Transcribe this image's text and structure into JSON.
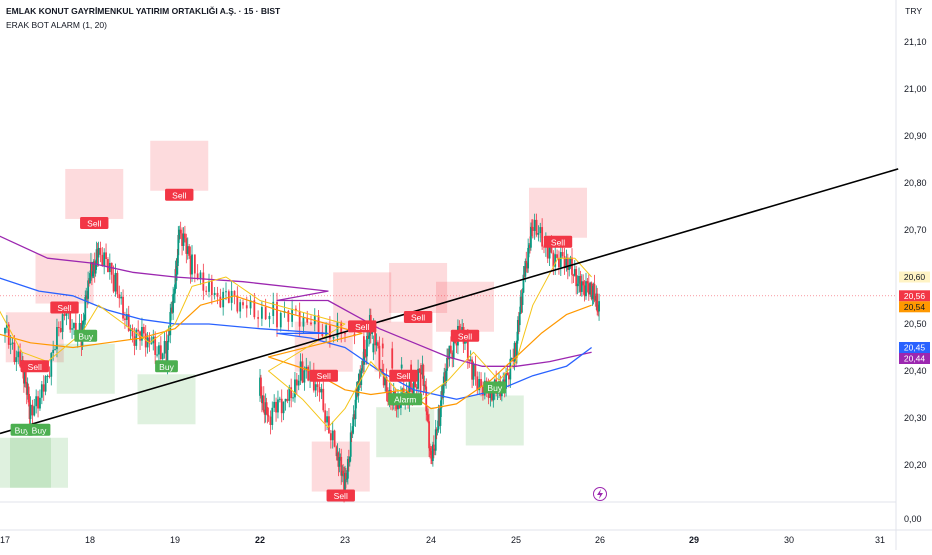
{
  "header": {
    "title": "EMLAK KONUT GAYRİMENKUL YATIRIM ORTAKLIĞI A.Ş. · 15 · BIST",
    "indicator": "ERAK BOT ALARM (1, 20)",
    "currency": "TRY"
  },
  "chart_data": {
    "type": "candlestick",
    "y_ticks": [
      "21,10",
      "21,00",
      "20,90",
      "20,80",
      "20,70",
      "20,60",
      "20,50",
      "20,40",
      "20,30",
      "20,20",
      "0,00"
    ],
    "y_tick_values": [
      21.1,
      21.0,
      20.9,
      20.8,
      20.7,
      20.6,
      20.5,
      20.4,
      20.3,
      20.2
    ],
    "x_ticks": [
      "17",
      "18",
      "19",
      "22",
      "23",
      "24",
      "25",
      "26",
      "29",
      "30",
      "31"
    ],
    "price_labels": [
      {
        "text": "20,60",
        "value": 20.6,
        "color": "#fff3c4",
        "text_color": "#131722"
      },
      {
        "text": "20,56",
        "value": 20.56,
        "color": "#f23645",
        "text_color": "#ffffff"
      },
      {
        "text": "20,54",
        "value": 20.54,
        "color": "#ff9800",
        "text_color": "#131722"
      },
      {
        "text": "20,45",
        "value": 20.45,
        "color": "#2962ff",
        "text_color": "#ffffff"
      },
      {
        "text": "20,44",
        "value": 20.44,
        "color": "#9c27b0",
        "text_color": "#ffffff"
      }
    ],
    "signals": [
      {
        "label": "Buy",
        "type": "buy",
        "day": 17.2,
        "price": 20.275
      },
      {
        "label": "Buy",
        "type": "buy",
        "day": 17.4,
        "price": 20.275
      },
      {
        "label": "Sell",
        "type": "sell",
        "day": 17.35,
        "price": 20.41
      },
      {
        "label": "Sell",
        "type": "sell",
        "day": 17.7,
        "price": 20.535
      },
      {
        "label": "Buy",
        "type": "buy",
        "day": 17.95,
        "price": 20.475
      },
      {
        "label": "Sell",
        "type": "sell",
        "day": 18.05,
        "price": 20.715
      },
      {
        "label": "Buy",
        "type": "buy",
        "day": 18.9,
        "price": 20.41
      },
      {
        "label": "Sell",
        "type": "sell",
        "day": 19.05,
        "price": 20.775
      },
      {
        "label": "Sell",
        "type": "sell",
        "day": 22.75,
        "price": 20.39
      },
      {
        "label": "Sell",
        "type": "sell",
        "day": 22.95,
        "price": 20.135
      },
      {
        "label": "Sell",
        "type": "sell",
        "day": 23.2,
        "price": 20.495
      },
      {
        "label": "Sell",
        "type": "sell",
        "day": 23.68,
        "price": 20.39
      },
      {
        "label": "Alarm",
        "type": "buy",
        "day": 23.7,
        "price": 20.34
      },
      {
        "label": "Sell",
        "type": "sell",
        "day": 23.85,
        "price": 20.515
      },
      {
        "label": "Sell",
        "type": "sell",
        "day": 24.4,
        "price": 20.475
      },
      {
        "label": "Buy",
        "type": "buy",
        "day": 24.75,
        "price": 20.365
      },
      {
        "label": "Sell",
        "type": "sell",
        "day": 25.5,
        "price": 20.675
      }
    ],
    "trendline": {
      "from": {
        "day": 16.9,
        "price": 20.27
      },
      "to": {
        "day": 31.2,
        "price": 20.83
      }
    },
    "last_price_line": 20.56,
    "grid": false,
    "legend": "none"
  }
}
